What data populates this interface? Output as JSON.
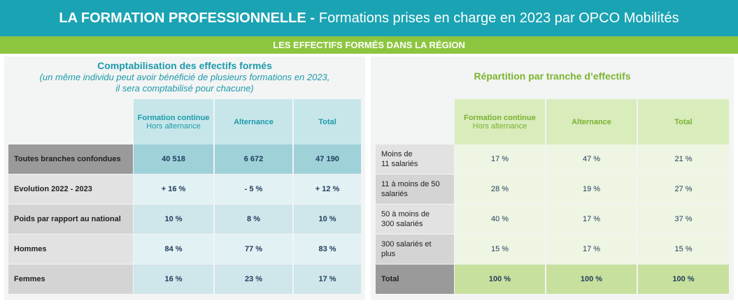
{
  "header": {
    "title_bold": "LA FORMATION PROFESSIONNELLE -",
    "title_rest": "Formations prises en charge en 2023 par OPCO Mobilités"
  },
  "subheader": "LES EFFECTIFS FORMÉS DANS LA RÉGION",
  "left": {
    "title": "Comptabilisation des effectifs formés",
    "subtitle_line1": "(un même individu peut avoir bénéficié de plusieurs formations en 2023,",
    "subtitle_line2": "il sera comptabilisé pour chacune)",
    "columns": [
      {
        "label": "Formation continue",
        "sub": "Hors alternance"
      },
      {
        "label": "Alternance",
        "sub": ""
      },
      {
        "label": "Total",
        "sub": ""
      }
    ],
    "rows": [
      {
        "label": "Toutes branches confondues",
        "values": [
          "40 518",
          "6 672",
          "47 190"
        ]
      },
      {
        "label": "Evolution 2022 - 2023",
        "values": [
          "+ 16 %",
          "- 5 %",
          "+ 12 %"
        ]
      },
      {
        "label": "Poids par rapport au national",
        "values": [
          "10 %",
          "8 %",
          "10 %"
        ]
      },
      {
        "label": "Hommes",
        "values": [
          "84 %",
          "77 %",
          "83 %"
        ]
      },
      {
        "label": "Femmes",
        "values": [
          "16 %",
          "23 %",
          "17 %"
        ]
      }
    ]
  },
  "right": {
    "title": "Répartition par tranche d’effectifs",
    "columns": [
      {
        "label": "Formation continue",
        "sub": "Hors alternance"
      },
      {
        "label": "Alternance",
        "sub": ""
      },
      {
        "label": "Total",
        "sub": ""
      }
    ],
    "rows": [
      {
        "label_line1": "Moins de",
        "label_line2": "11 salariés",
        "values": [
          "17 %",
          "47 %",
          "21 %"
        ]
      },
      {
        "label_line1": "11 à moins de 50",
        "label_line2": "salariés",
        "values": [
          "28 %",
          "19 %",
          "27 %"
        ]
      },
      {
        "label_line1": "50 à moins de",
        "label_line2": "300 salariés",
        "values": [
          "40 %",
          "17 %",
          "37 %"
        ]
      },
      {
        "label_line1": "300 salariés et",
        "label_line2": "plus",
        "values": [
          "15 %",
          "17 %",
          "15 %"
        ]
      },
      {
        "label_line1": "Total",
        "label_line2": "",
        "values": [
          "100 %",
          "100 %",
          "100 %"
        ]
      }
    ]
  }
}
